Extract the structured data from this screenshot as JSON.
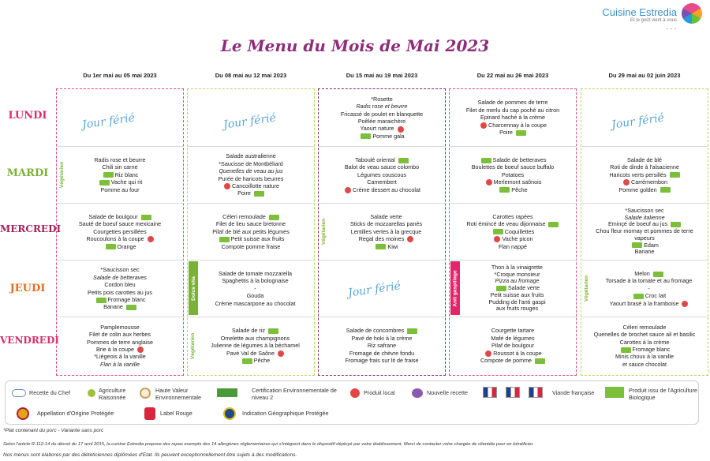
{
  "brand": {
    "name": "Cuisine Estredia",
    "tagline": "Et le goût vient à vous",
    "logo_icon": "rainbow-swirl-icon"
  },
  "title": "Le Menu du Mois de Mai 2023",
  "weeks": [
    "Du 1er mai au 05 mai 2023",
    "Du 08 mai au 12 mai 2023",
    "Du 15 mai au 19 mai 2023",
    "Du 22 mai au 26 mai 2023",
    "Du 29 mai au 02 juin 2023"
  ],
  "days": [
    "LUNDI",
    "MARDI",
    "MERCREDI",
    "JEUDI",
    "VENDREDI"
  ],
  "jour_ferie": "Jour férié",
  "bands": {
    "vegetarien": "Végétarien",
    "dolce_vita": "Dolce vita",
    "anti_gaspillage": "Anti gaspillage"
  },
  "w1": {
    "mardi": [
      "Radis rose et beurre",
      "Chili sin carne",
      "Riz blanc",
      "Vache qui rit",
      "Pomme au four"
    ],
    "mercredi": [
      "Salade de boulgour",
      "Sauté de boeuf sauce mexicaine",
      "Courgettes persillées",
      "Roucoulons à la coupe",
      "Orange"
    ],
    "jeudi": [
      "*Saucisson sec",
      "Salade de betteraves",
      "Cordon bleu",
      "Petits pois carottes au jus",
      "Fromage blanc",
      "Banane"
    ],
    "vendredi": [
      "Pamplemousse",
      "Filet de colin aux herbes",
      "Pommes de terre anglaise",
      "Brie à la coupe",
      "*Liégeois à la vanille",
      "Flan à la vanille"
    ]
  },
  "w2": {
    "mardi": [
      "Salade australienne",
      "*Saucisse de Montbéliard",
      "Quenelles de veau au jus",
      "Purée de haricots beurres",
      "Cancoillotte nature",
      "Poire"
    ],
    "mercredi": [
      "Céleri remoulade",
      "Filet de lieu sauce bretonne",
      "Pilaf de blé aux petits légumes",
      "Petit suisse aux fruits",
      "Compote pomme fraise"
    ],
    "jeudi": [
      "Salade de tomate mozzarella",
      "Spaghettis à la bolognaise",
      "-",
      "Gouda",
      "Crème mascarpone au chocolat"
    ],
    "vendredi": [
      "Salade de riz",
      "Omelette aux champignons",
      "Julienne de légumes à la béchamel",
      "Pavé Val de Saône",
      "Pêche"
    ]
  },
  "w3": {
    "lundi": [
      "*Rosette",
      "Radis rose et beurre",
      "Fricassé de poulet en blanquette",
      "Poêlée maraichère",
      "Yaourt nature",
      "Pomme gala"
    ],
    "mardi": [
      "Taboulé oriental",
      "Balot de veau sauce colombo",
      "Légumes couscous",
      "Camembert",
      "Crème dessert au chocolat"
    ],
    "mercredi": [
      "Salade verte",
      "Sticks de mozzarellas panés",
      "Lentilles vertes à la grecque",
      "Regal des moines",
      "Kiwi"
    ],
    "vendredi": [
      "Salade de concombres",
      "Pavé de hoki à la crème",
      "Riz safrane",
      "Fromage de chèvre fondu",
      "Fromage frais sur lit de fraise"
    ]
  },
  "w4": {
    "lundi": [
      "Salade de pommes de terre",
      "Filet de merlu du cap poché au citron",
      "Epinard haché à la crème",
      "Charcennay à la coupe",
      "Poire"
    ],
    "mardi": [
      "Salade de betteraves",
      "Boulettes de boeuf sauce buffalo",
      "Potatoes",
      "Merlemont saônois",
      "Pêche"
    ],
    "mercredi": [
      "Carottes rapées",
      "Roti émincé de veau dijonnaise",
      "Coquillettes",
      "Vache picon",
      "Flan nappé"
    ],
    "jeudi": [
      "Thon à la vinaigrette",
      "*Croque monsieur",
      "Pizza au fromage",
      "Salade verte",
      "Petit suisse aux fruits",
      "Pudding de l'anti gaspi",
      "aux fruits rouges"
    ],
    "vendredi": [
      "Courgette tartare",
      "Mafé de légumes",
      "Pilaf de boulgour",
      "Roussot à la coupe",
      "Compote de pomme"
    ]
  },
  "w5": {
    "mardi": [
      "Salade de blé",
      "Roti de dinde à l'alsacienne",
      "Haricots verts persillés",
      "Carrémembon",
      "Pomme golden"
    ],
    "mercredi": [
      "*Saucisson sec",
      "Salade italienne",
      "Eminçé de boeuf au jus",
      "Chou fleur mornay et pommes de terre",
      "vapeurs",
      "Edam",
      "Banane"
    ],
    "jeudi": [
      "Melon",
      "Torsade à la tomate et au fromage",
      "-",
      "Croc lait",
      "Yaourt brasé à la framboise"
    ],
    "vendredi": [
      "Céleri remoulade",
      "Quenelles de brochet sauce ail et basilic",
      "Carottes à la crème",
      "Fromage blanc",
      "Minis choux à la vanille",
      "et sauce chocolat"
    ]
  },
  "legend": {
    "chef": "Recette du Chef",
    "agri": "Agriculture Raisonnée",
    "hve": "Haute Valeur Environnementale",
    "cert": "Certification Environnementale de niveau 2",
    "local": "Produit local",
    "new": "Nouvelle recette",
    "vf": "Viande française",
    "ab": "Produit issu de l'Agriculture Biologique",
    "aop": "Appellation d'Origine Protégée",
    "lr": "Label Rouge",
    "igp": "Indication Géographique Protégée"
  },
  "footer": {
    "porc": "*Plat contenant du porc  - Variante sans porc",
    "allergenes": "Selon l'article R.112-14 du décret du 17 avril 2015, la cuisine Estredia propose des repas exempts des 14 allergènes réglementaires qui s'intègrent dans le dispositif déployé par votre établissement. Merci de contacter votre chargée de clientèle pour en bénéficier.",
    "dieteticiennes": "Nos menus sont élaborés par des diététiciennes diplômées d'Etat. Ils peuvent exceptionnellement être sujets à des modifications."
  }
}
